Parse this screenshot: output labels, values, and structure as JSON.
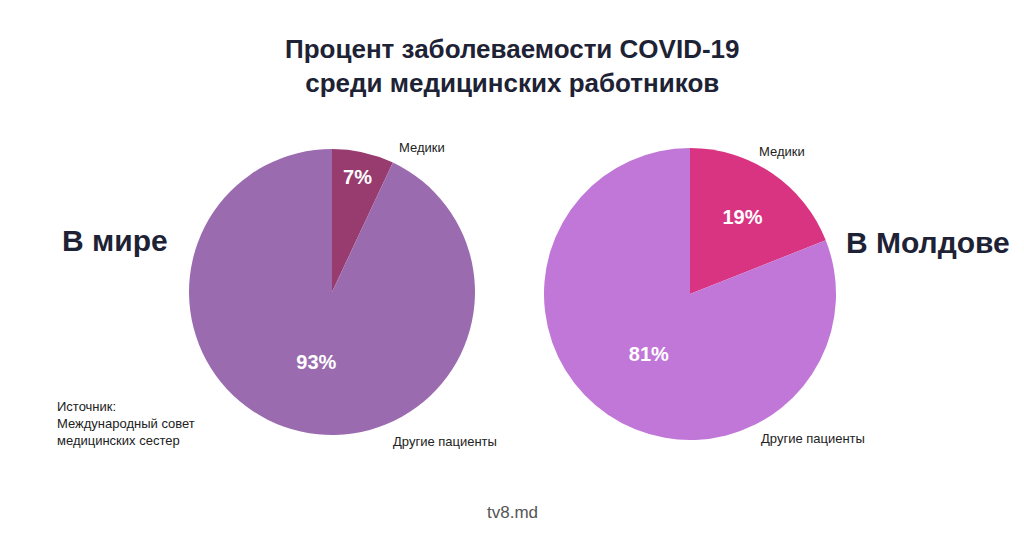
{
  "title": [
    "Процент заболеваемости COVID-19",
    "среди медицинских работников"
  ],
  "chart_data": [
    {
      "type": "pie",
      "title": "В мире",
      "categories": [
        "Медики",
        "Другие пациенты"
      ],
      "values": [
        7,
        93
      ],
      "value_labels": [
        "7%",
        "93%"
      ],
      "colors": [
        "#983b6f",
        "#9b6bb0"
      ],
      "data_labels": true
    },
    {
      "type": "pie",
      "title": "В Молдове",
      "categories": [
        "Медики",
        "Другие пациенты"
      ],
      "values": [
        19,
        81
      ],
      "value_labels": [
        "19%",
        "81%"
      ],
      "colors": [
        "#d93482",
        "#c177d8"
      ],
      "data_labels": true
    }
  ],
  "source": [
    "Источник:",
    "Международный совет",
    "медицинских сестер"
  ],
  "watermark": "tv8.md"
}
